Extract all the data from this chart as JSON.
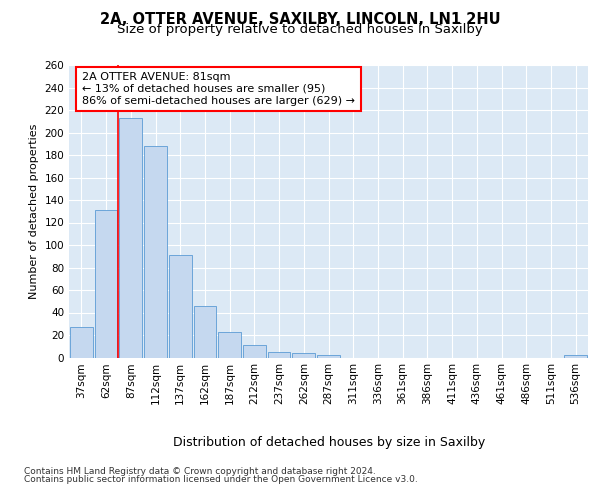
{
  "title1": "2A, OTTER AVENUE, SAXILBY, LINCOLN, LN1 2HU",
  "title2": "Size of property relative to detached houses in Saxilby",
  "xlabel": "Distribution of detached houses by size in Saxilby",
  "ylabel": "Number of detached properties",
  "categories": [
    "37sqm",
    "62sqm",
    "87sqm",
    "112sqm",
    "137sqm",
    "162sqm",
    "187sqm",
    "212sqm",
    "237sqm",
    "262sqm",
    "287sqm",
    "311sqm",
    "336sqm",
    "361sqm",
    "386sqm",
    "411sqm",
    "436sqm",
    "461sqm",
    "486sqm",
    "511sqm",
    "536sqm"
  ],
  "values": [
    27,
    131,
    213,
    188,
    91,
    46,
    23,
    11,
    5,
    4,
    2,
    0,
    0,
    0,
    0,
    0,
    0,
    0,
    0,
    0,
    2
  ],
  "bar_color": "#c5d8ef",
  "bar_edge_color": "#5b9bd5",
  "vline_x": 1.5,
  "vline_color": "red",
  "annotation_text": "2A OTTER AVENUE: 81sqm\n← 13% of detached houses are smaller (95)\n86% of semi-detached houses are larger (629) →",
  "ylim": [
    0,
    260
  ],
  "yticks": [
    0,
    20,
    40,
    60,
    80,
    100,
    120,
    140,
    160,
    180,
    200,
    220,
    240,
    260
  ],
  "footer1": "Contains HM Land Registry data © Crown copyright and database right 2024.",
  "footer2": "Contains public sector information licensed under the Open Government Licence v3.0.",
  "plot_bg_color": "#dce9f5",
  "title1_fontsize": 10.5,
  "title2_fontsize": 9.5,
  "xlabel_fontsize": 9,
  "ylabel_fontsize": 8,
  "tick_fontsize": 7.5,
  "annotation_fontsize": 8,
  "footer_fontsize": 6.5
}
